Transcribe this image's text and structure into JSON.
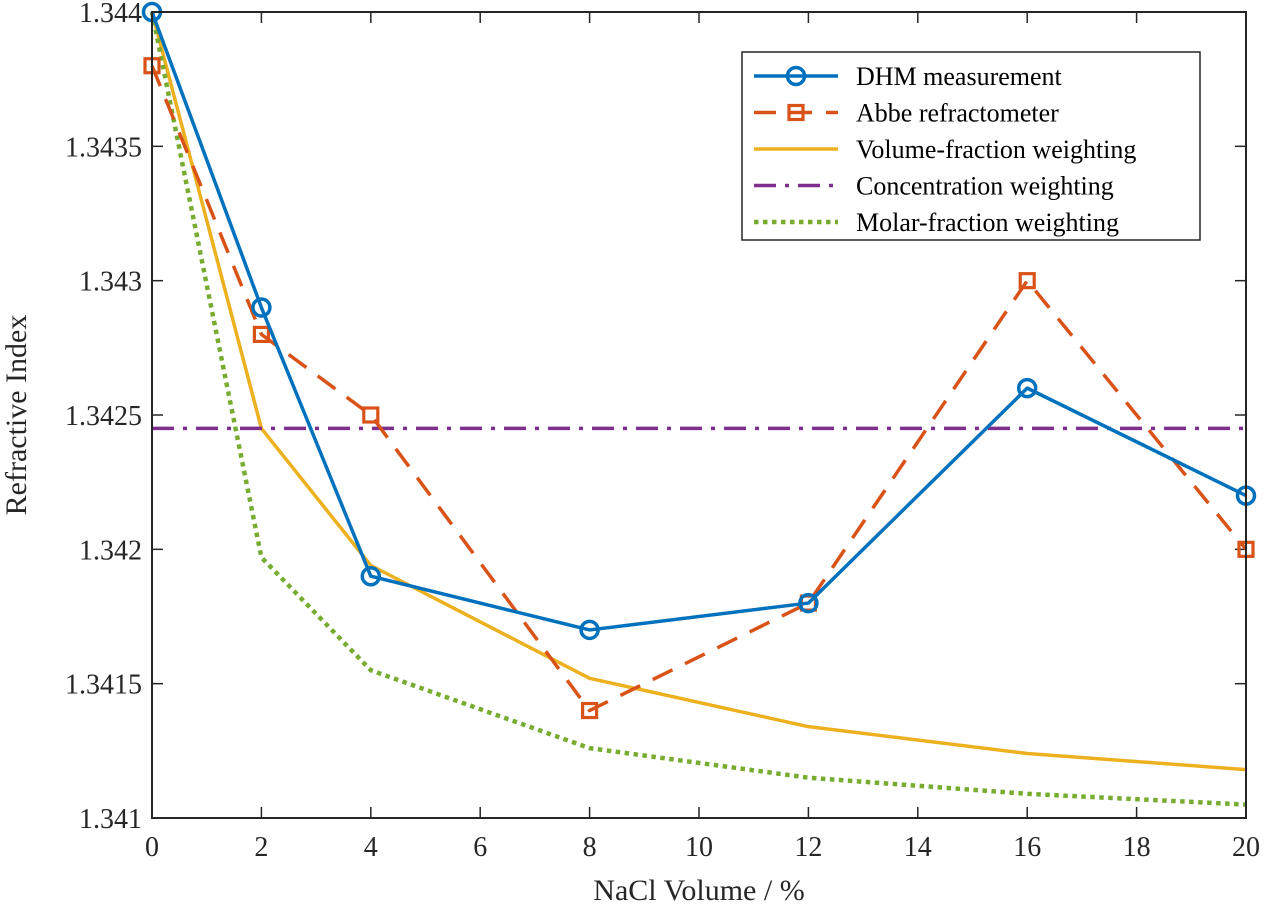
{
  "chart_data": {
    "type": "line",
    "xlabel": "NaCl Volume / %",
    "ylabel": "Refractive Index",
    "xlim": [
      0,
      20
    ],
    "ylim": [
      1.341,
      1.344
    ],
    "xticks": [
      0,
      2,
      4,
      6,
      8,
      10,
      12,
      14,
      16,
      18,
      20
    ],
    "xtick_labels": [
      "0",
      "2",
      "4",
      "6",
      "8",
      "10",
      "12",
      "14",
      "16",
      "18",
      "20"
    ],
    "yticks": [
      1.341,
      1.3415,
      1.342,
      1.3425,
      1.343,
      1.3435,
      1.344
    ],
    "ytick_labels": [
      "1.341",
      "1.3415",
      "1.342",
      "1.3425",
      "1.343",
      "1.3435",
      "1.344"
    ],
    "legend_position": "top-right",
    "series": [
      {
        "name": "DHM measurement",
        "color": "#0072BD",
        "style": "solid",
        "marker": "circle",
        "x": [
          0,
          2,
          4,
          8,
          12,
          16,
          20
        ],
        "y": [
          1.344,
          1.3429,
          1.3419,
          1.3417,
          1.3418,
          1.3426,
          1.3422
        ]
      },
      {
        "name": "Abbe refractometer",
        "color": "#D95319",
        "style": "dashed",
        "marker": "square",
        "x": [
          0,
          2,
          4,
          8,
          12,
          16,
          20
        ],
        "y": [
          1.3438,
          1.3428,
          1.3425,
          1.3414,
          1.3418,
          1.343,
          1.342
        ]
      },
      {
        "name": "Volume-fraction weighting",
        "color": "#EDB120",
        "style": "solid",
        "marker": "none",
        "x": [
          0,
          2,
          4,
          8,
          12,
          16,
          20
        ],
        "y": [
          1.344,
          1.34245,
          1.34194,
          1.34152,
          1.34134,
          1.34124,
          1.34118
        ]
      },
      {
        "name": "Concentration weighting",
        "color": "#7E2F8E",
        "style": "dashdot",
        "marker": "none",
        "x": [
          0,
          20
        ],
        "y": [
          1.34245,
          1.34245
        ]
      },
      {
        "name": "Molar-fraction weighting",
        "color": "#77AC30",
        "style": "dotted",
        "marker": "none",
        "x": [
          0,
          2,
          4,
          8,
          12,
          16,
          20
        ],
        "y": [
          1.344,
          1.34197,
          1.34155,
          1.34126,
          1.34115,
          1.34109,
          1.34105
        ]
      }
    ]
  }
}
